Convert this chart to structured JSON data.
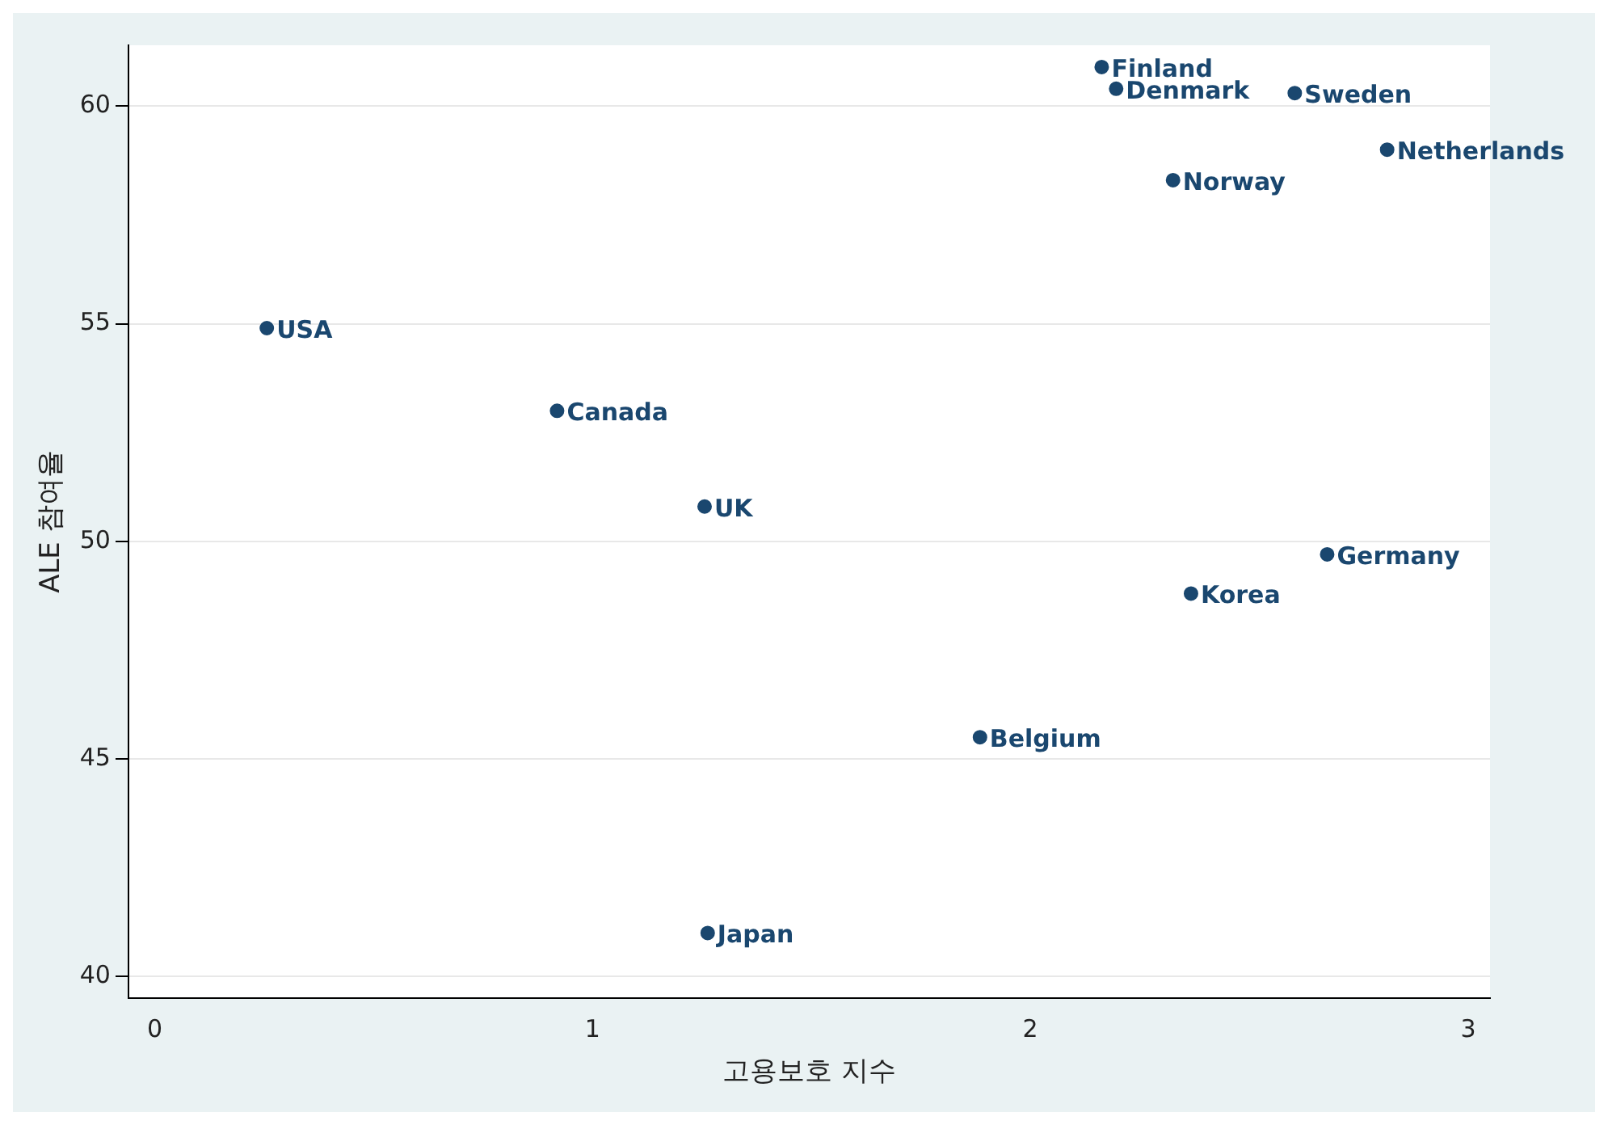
{
  "chart_data": {
    "type": "scatter",
    "xlabel": "고용보호 지수",
    "ylabel": "ALE 참여율",
    "series": [
      {
        "color": "#1a476f",
        "x": [
          2.163,
          2.196,
          2.604,
          2.815,
          2.326,
          0.256,
          0.919,
          1.256,
          2.678,
          2.367,
          1.885,
          1.263
        ],
        "values": [
          60.9,
          60.4,
          60.3,
          59.0,
          58.3,
          54.9,
          53.0,
          50.8,
          49.7,
          48.8,
          45.5,
          41.0
        ]
      }
    ],
    "annotations": [
      {
        "text": "Finland",
        "x": 2.163,
        "y": 60.9
      },
      {
        "text": "Denmark",
        "x": 2.196,
        "y": 60.4
      },
      {
        "text": "Sweden",
        "x": 2.604,
        "y": 60.3
      },
      {
        "text": "Netherlands",
        "x": 2.815,
        "y": 59.0
      },
      {
        "text": "Norway",
        "x": 2.326,
        "y": 58.3
      },
      {
        "text": "USA",
        "x": 0.256,
        "y": 54.9
      },
      {
        "text": "Canada",
        "x": 0.919,
        "y": 53.0
      },
      {
        "text": "UK",
        "x": 1.256,
        "y": 50.8
      },
      {
        "text": "Germany",
        "x": 2.678,
        "y": 49.7
      },
      {
        "text": "Korea",
        "x": 2.367,
        "y": 48.8
      },
      {
        "text": "Belgium",
        "x": 1.885,
        "y": 45.5
      },
      {
        "text": "Japan",
        "x": 1.263,
        "y": 41.0
      }
    ],
    "xlim": [
      -0.06,
      3.05
    ],
    "xticks": [
      0,
      1,
      2,
      3
    ],
    "ylim": [
      39.5,
      61.4
    ],
    "yticks": [
      40,
      45,
      50,
      55,
      60
    ],
    "grid": "y",
    "marker": "circle",
    "legend": false
  }
}
